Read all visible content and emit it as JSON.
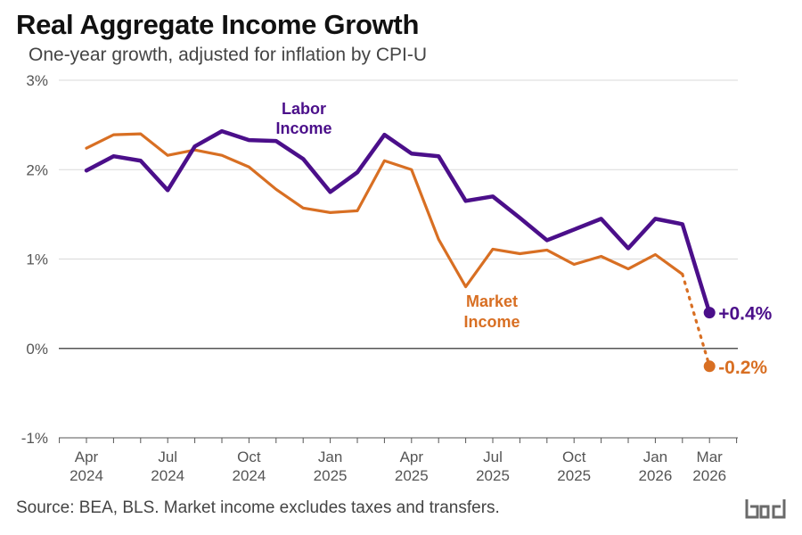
{
  "title": "Real Aggregate Income Growth",
  "subtitle": "One-year growth, adjusted for inflation by CPI-U",
  "source": "Source: BEA, BLS. Market income excludes taxes and transfers.",
  "chart_data": {
    "type": "line",
    "x": [
      "2024-04",
      "2024-05",
      "2024-06",
      "2024-07",
      "2024-08",
      "2024-09",
      "2024-10",
      "2024-11",
      "2024-12",
      "2025-01",
      "2025-02",
      "2025-03",
      "2025-04",
      "2025-05",
      "2025-06",
      "2025-07",
      "2025-08",
      "2025-09",
      "2025-10",
      "2025-11",
      "2025-12",
      "2026-01",
      "2026-02",
      "2026-03"
    ],
    "x_tick_labels": [
      {
        "x": "2024-04",
        "line1": "Apr",
        "line2": "2024"
      },
      {
        "x": "2024-07",
        "line1": "Jul",
        "line2": "2024"
      },
      {
        "x": "2024-10",
        "line1": "Oct",
        "line2": "2024"
      },
      {
        "x": "2025-01",
        "line1": "Jan",
        "line2": "2025"
      },
      {
        "x": "2025-04",
        "line1": "Apr",
        "line2": "2025"
      },
      {
        "x": "2025-07",
        "line1": "Jul",
        "line2": "2025"
      },
      {
        "x": "2025-10",
        "line1": "Oct",
        "line2": "2025"
      },
      {
        "x": "2026-01",
        "line1": "Jan",
        "line2": "2026"
      },
      {
        "x": "2026-03",
        "line1": "Mar",
        "line2": "2026"
      }
    ],
    "y_ticks": [
      -1,
      0,
      1,
      2,
      3
    ],
    "y_tick_labels": [
      "-1%",
      "0%",
      "1%",
      "2%",
      "3%"
    ],
    "ylim": [
      -1,
      3
    ],
    "grid": true,
    "series": [
      {
        "name": "Labor Income",
        "label_lines": [
          "Labor",
          "Income"
        ],
        "color": "#4b0f8a",
        "values": [
          1.99,
          2.15,
          2.1,
          1.77,
          2.26,
          2.43,
          2.33,
          2.32,
          2.12,
          1.75,
          1.97,
          2.39,
          2.18,
          2.15,
          1.65,
          1.7,
          1.46,
          1.21,
          1.33,
          1.45,
          1.12,
          1.45,
          1.39,
          0.4
        ],
        "end_label": "+0.4%",
        "dotted_last_segment": false
      },
      {
        "name": "Market Income",
        "label_lines": [
          "Market",
          "Income"
        ],
        "color": "#d86f23",
        "values": [
          2.24,
          2.39,
          2.4,
          2.16,
          2.22,
          2.16,
          2.03,
          1.78,
          1.57,
          1.52,
          1.54,
          2.1,
          2.0,
          1.22,
          0.69,
          1.11,
          1.06,
          1.1,
          0.94,
          1.03,
          0.89,
          1.05,
          0.83,
          -0.2
        ],
        "end_label": "-0.2%",
        "dotted_last_segment": true
      }
    ]
  }
}
